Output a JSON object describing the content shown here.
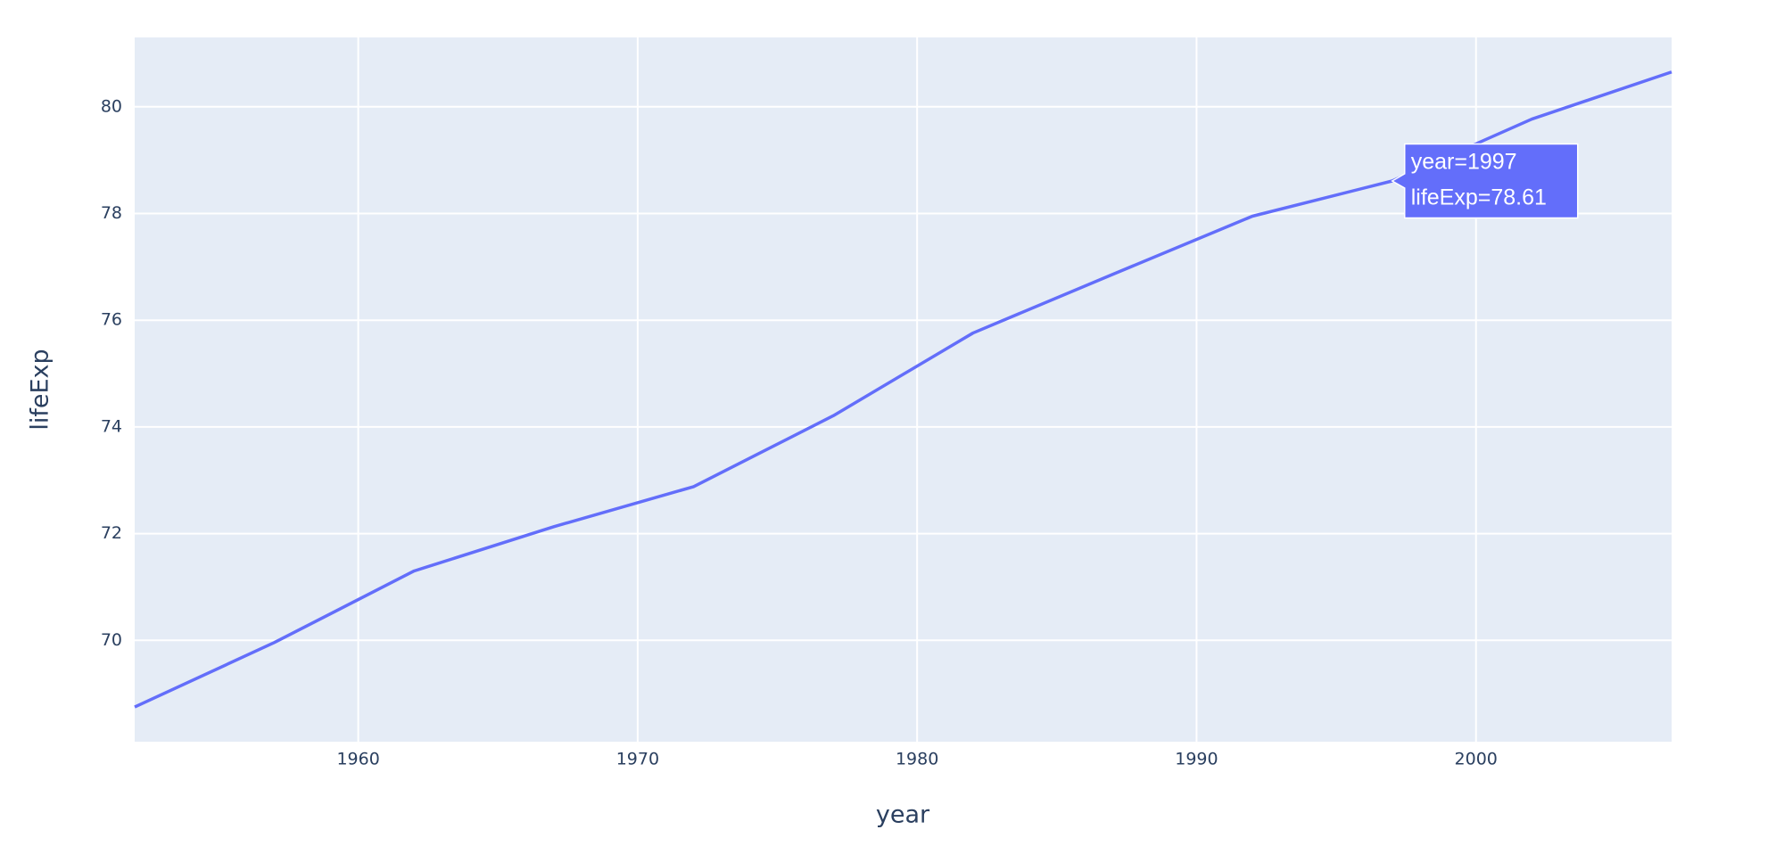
{
  "chart_data": {
    "type": "line",
    "x_label": "year",
    "y_label": "lifeExp",
    "x": [
      1952,
      1957,
      1962,
      1967,
      1972,
      1977,
      1982,
      1987,
      1992,
      1997,
      2002,
      2007
    ],
    "series": [
      {
        "color": "#636efa",
        "values": [
          68.75,
          69.96,
          71.3,
          72.13,
          72.88,
          74.21,
          75.76,
          76.86,
          77.95,
          78.61,
          79.77,
          80.653
        ]
      }
    ],
    "xlim": [
      1952,
      2007
    ],
    "ylim": [
      68.1,
      81.3
    ],
    "xticks": [
      1960,
      1970,
      1980,
      1990,
      2000
    ],
    "yticks": [
      70,
      72,
      74,
      76,
      78,
      80
    ],
    "grid": true,
    "tooltip": {
      "index": 9,
      "lines": [
        "year=1997",
        "lifeExp=78.61"
      ]
    }
  }
}
